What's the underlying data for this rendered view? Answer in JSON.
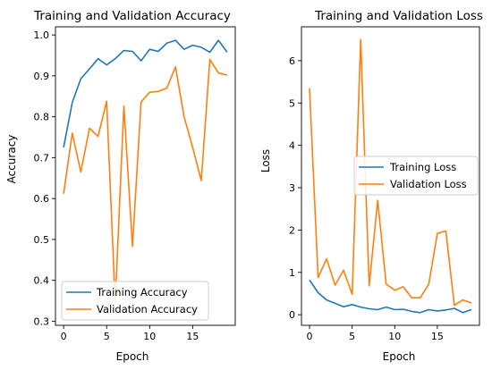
{
  "colors": {
    "training": "#1f77b4",
    "validation": "#ff7f0e"
  },
  "chart_data": [
    {
      "type": "line",
      "title": "Training and Validation Accuracy",
      "xlabel": "Epoch",
      "ylabel": "Accuracy",
      "xlim": [
        -0.95,
        19.95
      ],
      "ylim": [
        0.29,
        1.02
      ],
      "xticks": [
        0,
        5,
        10,
        15
      ],
      "yticks": [
        0.3,
        0.4,
        0.5,
        0.6,
        0.7,
        0.8,
        0.9,
        1.0
      ],
      "ytick_labels": [
        "0.3",
        "0.4",
        "0.5",
        "0.6",
        "0.7",
        "0.8",
        "0.9",
        "1.0"
      ],
      "grid": false,
      "legend_position": "lower-left",
      "x": [
        0,
        1,
        2,
        3,
        4,
        5,
        6,
        7,
        8,
        9,
        10,
        11,
        12,
        13,
        14,
        15,
        16,
        17,
        18,
        19
      ],
      "series": [
        {
          "name": "Training Accuracy",
          "color_key": "training",
          "values": [
            0.725,
            0.835,
            0.893,
            0.917,
            0.942,
            0.927,
            0.942,
            0.962,
            0.96,
            0.937,
            0.965,
            0.96,
            0.98,
            0.987,
            0.965,
            0.975,
            0.97,
            0.958,
            0.987,
            0.958
          ]
        },
        {
          "name": "Validation Accuracy",
          "color_key": "validation",
          "values": [
            0.612,
            0.76,
            0.665,
            0.772,
            0.752,
            0.838,
            0.345,
            0.826,
            0.483,
            0.836,
            0.86,
            0.862,
            0.87,
            0.922,
            0.8,
            0.725,
            0.644,
            0.94,
            0.907,
            0.902
          ]
        }
      ]
    },
    {
      "type": "line",
      "title": "Training and Validation Loss",
      "xlabel": "Epoch",
      "ylabel": "Loss",
      "xlim": [
        -0.95,
        19.95
      ],
      "ylim": [
        -0.25,
        6.8
      ],
      "xticks": [
        0,
        5,
        10,
        15
      ],
      "yticks": [
        0,
        1,
        2,
        3,
        4,
        5,
        6
      ],
      "ytick_labels": [
        "0",
        "1",
        "2",
        "3",
        "4",
        "5",
        "6"
      ],
      "grid": false,
      "legend_position": "center-right",
      "x": [
        0,
        1,
        2,
        3,
        4,
        5,
        6,
        7,
        8,
        9,
        10,
        11,
        12,
        13,
        14,
        15,
        16,
        17,
        18,
        19
      ],
      "series": [
        {
          "name": "Training Loss",
          "color_key": "training",
          "values": [
            0.82,
            0.52,
            0.35,
            0.27,
            0.19,
            0.24,
            0.18,
            0.14,
            0.12,
            0.18,
            0.12,
            0.13,
            0.08,
            0.05,
            0.12,
            0.09,
            0.11,
            0.15,
            0.05,
            0.12
          ]
        },
        {
          "name": "Validation Loss",
          "color_key": "validation",
          "values": [
            5.35,
            0.88,
            1.32,
            0.7,
            1.05,
            0.48,
            6.5,
            0.68,
            2.7,
            0.72,
            0.58,
            0.66,
            0.4,
            0.4,
            0.72,
            1.92,
            1.98,
            0.22,
            0.35,
            0.28
          ]
        }
      ]
    }
  ]
}
